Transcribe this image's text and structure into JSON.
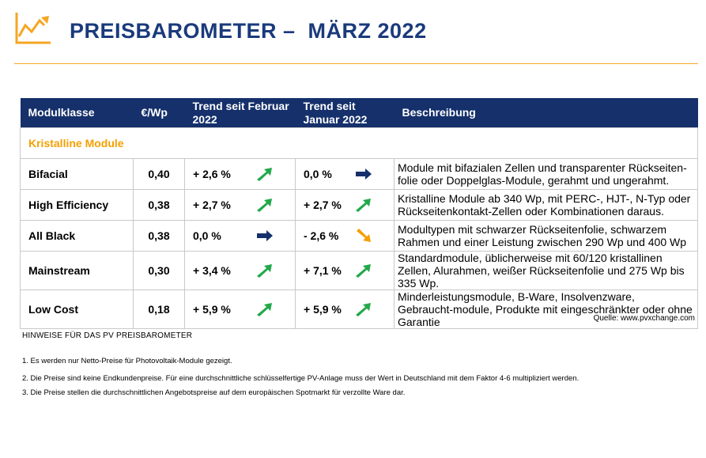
{
  "header": {
    "title": "PREISBAROMETER –  MÄRZ 2022",
    "logo_icon": "trend-chart-icon",
    "accent_color": "#f5a623",
    "brand_color": "#1a3a7c"
  },
  "table": {
    "columns": [
      "Modulklasse",
      "€/Wp",
      "Trend seit Februar 2022",
      "Trend seit Januar 2022",
      "Beschreibung"
    ],
    "section": "Kristalline Module",
    "rows": [
      {
        "klasse": "Bifacial",
        "preis": "0,40",
        "feb": "+ 2,6 %",
        "feb_icon": "up-right-arrow-green",
        "jan": "0,0 %",
        "jan_icon": "right-arrow-blue",
        "beschreibung": "Module mit bifazialen Zellen und transparenter Rückseiten-folie oder Doppelglas-Module, gerahmt und ungerahmt."
      },
      {
        "klasse": "High Efficiency",
        "preis": "0,38",
        "feb": "+ 2,7 %",
        "feb_icon": "up-right-arrow-green",
        "jan": "+ 2,7 %",
        "jan_icon": "up-right-arrow-green",
        "beschreibung": "Kristalline Module ab 340 Wp, mit PERC-, HJT-, N-Typ oder Rückseitenkontakt-Zellen oder Kombinationen daraus."
      },
      {
        "klasse": "All Black",
        "preis": "0,38",
        "feb": "0,0 %",
        "feb_icon": "right-arrow-blue",
        "jan": "- 2,6 %",
        "jan_icon": "down-right-arrow-orange",
        "beschreibung": "Modultypen mit schwarzer Rückseitenfolie, schwarzem Rahmen und einer Leistung  zwischen 290 Wp und 400 Wp"
      },
      {
        "klasse": "Mainstream",
        "preis": "0,30",
        "feb": "+ 3,4 %",
        "feb_icon": "up-right-arrow-green",
        "jan": "+ 7,1 %",
        "jan_icon": "up-right-arrow-green",
        "beschreibung": "Standardmodule, üblicherweise mit 60/120 kristallinen Zellen, Alurahmen, weißer Rückseitenfolie und 275 Wp bis 335 Wp."
      },
      {
        "klasse": "Low Cost",
        "preis": "0,18",
        "feb": "+ 5,9 %",
        "feb_icon": "up-right-arrow-green",
        "jan": "+ 5,9 %",
        "jan_icon": "up-right-arrow-green",
        "beschreibung": "Minderleistungsmodule, B-Ware, Insolvenzware, Gebraucht-module, Produkte mit eingeschränkter oder ohne Garantie"
      }
    ]
  },
  "footer": {
    "quelle": "Quelle: www.pvxchange.com",
    "hinweise_title": "HINWEISE FÜR DAS PV PREISBAROMETER",
    "notes": [
      "1.  Es werden nur Netto-Preise für Photovoltaik-Module gezeigt.",
      "2. Die Preise sind keine Endkundenpreise. Für eine durchschnittliche schlüsselfertige PV-Anlage muss der Wert in Deutschland mit dem Faktor 4-6 multipliziert werden.",
      "3. Die Preise stellen die durchschnittlichen Angebotspreise auf dem europäischen Spotmarkt für verzollte Ware dar."
    ]
  }
}
